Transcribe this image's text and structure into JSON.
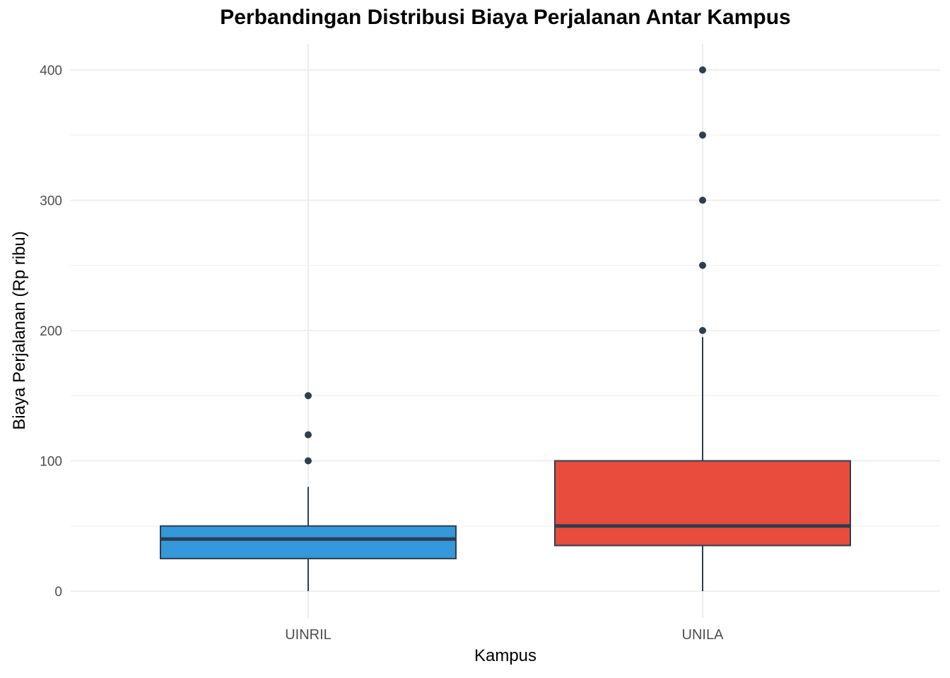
{
  "chart_data": {
    "type": "boxplot",
    "title": "Perbandingan Distribusi Biaya Perjalanan Antar Kampus",
    "xlabel": "Kampus",
    "ylabel": "Biaya Perjalanan (Rp ribu)",
    "categories": [
      "UINRIL",
      "UNILA"
    ],
    "ylim": [
      -10,
      420
    ],
    "yticks": [
      0,
      100,
      200,
      300,
      400
    ],
    "grid": true,
    "legend": false,
    "series": [
      {
        "name": "UINRIL",
        "color": "#3498db",
        "whisker_low": 0,
        "q1": 25,
        "median": 40,
        "q3": 50,
        "whisker_high": 80,
        "outliers": [
          100,
          120,
          150
        ]
      },
      {
        "name": "UNILA",
        "color": "#e74c3c",
        "whisker_low": 0,
        "q1": 35,
        "median": 50,
        "q3": 100,
        "whisker_high": 195,
        "outliers": [
          200,
          250,
          300,
          350,
          400
        ]
      }
    ],
    "outline_color": "#2c3e50"
  },
  "labels": {
    "title": "Perbandingan Distribusi Biaya Perjalanan Antar Kampus",
    "xlabel": "Kampus",
    "ylabel": "Biaya Perjalanan (Rp ribu)"
  }
}
